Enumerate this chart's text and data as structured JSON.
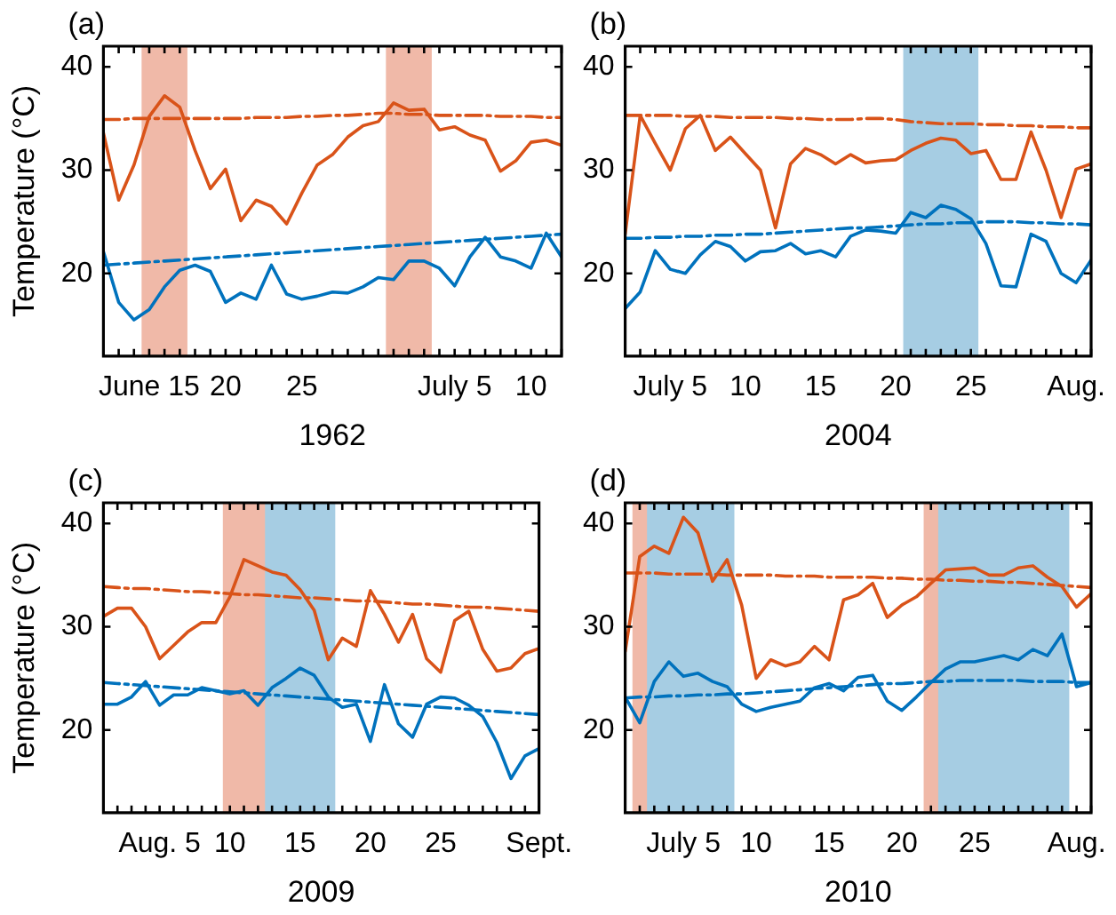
{
  "chart_data": [
    {
      "type": "line",
      "title": "(a)",
      "xlabel": "1962",
      "ylabel": "Temperature (°C)",
      "marker": "none",
      "x": [
        "1962-06-12",
        "1962-06-13",
        "1962-06-14",
        "1962-06-15",
        "1962-06-16",
        "1962-06-17",
        "1962-06-18",
        "1962-06-19",
        "1962-06-20",
        "1962-06-21",
        "1962-06-22",
        "1962-06-23",
        "1962-06-24",
        "1962-06-25",
        "1962-06-26",
        "1962-06-27",
        "1962-06-28",
        "1962-06-29",
        "1962-06-30",
        "1962-07-01",
        "1962-07-02",
        "1962-07-03",
        "1962-07-04",
        "1962-07-05",
        "1962-07-06",
        "1962-07-07",
        "1962-07-08",
        "1962-07-09",
        "1962-07-10",
        "1962-07-11",
        "1962-07-12"
      ],
      "xlim": [
        "1962-06-12",
        "1962-07-12"
      ],
      "xticks": [
        {
          "value": "1962-06-12",
          "label": null
        },
        {
          "value": "1962-06-13",
          "label": null
        },
        {
          "value": "1962-06-14",
          "label": null
        },
        {
          "value": "1962-06-15",
          "label": "June 15"
        },
        {
          "value": "1962-06-16",
          "label": null
        },
        {
          "value": "1962-06-17",
          "label": null
        },
        {
          "value": "1962-06-18",
          "label": null
        },
        {
          "value": "1962-06-19",
          "label": null
        },
        {
          "value": "1962-06-20",
          "label": "20"
        },
        {
          "value": "1962-06-21",
          "label": null
        },
        {
          "value": "1962-06-22",
          "label": null
        },
        {
          "value": "1962-06-23",
          "label": null
        },
        {
          "value": "1962-06-24",
          "label": null
        },
        {
          "value": "1962-06-25",
          "label": "25"
        },
        {
          "value": "1962-06-26",
          "label": null
        },
        {
          "value": "1962-06-27",
          "label": null
        },
        {
          "value": "1962-06-28",
          "label": null
        },
        {
          "value": "1962-06-29",
          "label": null
        },
        {
          "value": "1962-06-30",
          "label": null
        },
        {
          "value": "1962-07-01",
          "label": null
        },
        {
          "value": "1962-07-02",
          "label": null
        },
        {
          "value": "1962-07-03",
          "label": null
        },
        {
          "value": "1962-07-04",
          "label": null
        },
        {
          "value": "1962-07-05",
          "label": "July 5"
        },
        {
          "value": "1962-07-06",
          "label": null
        },
        {
          "value": "1962-07-07",
          "label": null
        },
        {
          "value": "1962-07-08",
          "label": null
        },
        {
          "value": "1962-07-09",
          "label": null
        },
        {
          "value": "1962-07-10",
          "label": "10"
        },
        {
          "value": "1962-07-11",
          "label": null
        },
        {
          "value": "1962-07-12",
          "label": null
        }
      ],
      "ylim": [
        12,
        42
      ],
      "yticks": [
        20,
        30,
        40
      ],
      "bands": [
        {
          "axis": "x",
          "from": "1962-06-14T12:00",
          "to": "1962-06-17T12:00",
          "color": "#f0b9a8"
        },
        {
          "axis": "x",
          "from": "1962-06-30T12:00",
          "to": "1962-07-03T12:00",
          "color": "#f0b9a8"
        }
      ],
      "series": [
        {
          "color": "#d95319",
          "values": [
            33.6,
            27.1,
            30.5,
            35.2,
            37.2,
            36.1,
            31.9,
            28.2,
            30.1,
            25.1,
            27.1,
            26.5,
            24.8,
            27.8,
            30.5,
            31.5,
            33.2,
            34.3,
            34.7,
            36.5,
            35.8,
            35.9,
            33.9,
            34.2,
            33.4,
            32.9,
            29.9,
            30.9,
            32.7,
            32.9,
            32.4
          ]
        },
        {
          "color": "#d95319",
          "line_style": "dashdot",
          "values": [
            34.9,
            34.9,
            35.0,
            35.0,
            35.0,
            35.0,
            35.0,
            35.0,
            35.0,
            35.0,
            35.1,
            35.1,
            35.1,
            35.2,
            35.2,
            35.3,
            35.3,
            35.4,
            35.5,
            35.5,
            35.4,
            35.4,
            35.3,
            35.3,
            35.3,
            35.3,
            35.2,
            35.2,
            35.2,
            35.1,
            35.1
          ]
        },
        {
          "color": "#0072bd",
          "values": [
            22.1,
            17.2,
            15.5,
            16.5,
            18.7,
            20.3,
            20.8,
            20.2,
            17.2,
            18.1,
            17.5,
            20.8,
            18.0,
            17.5,
            17.8,
            18.2,
            18.1,
            18.7,
            19.6,
            19.4,
            21.2,
            21.2,
            20.5,
            18.8,
            21.6,
            23.5,
            21.6,
            21.2,
            20.5,
            23.9,
            21.6
          ]
        },
        {
          "color": "#0072bd",
          "line_style": "dashdot",
          "values": [
            20.8,
            20.9,
            21.0,
            21.1,
            21.2,
            21.3,
            21.4,
            21.5,
            21.6,
            21.7,
            21.8,
            21.9,
            22.0,
            22.1,
            22.2,
            22.3,
            22.4,
            22.5,
            22.6,
            22.7,
            22.8,
            22.9,
            23.0,
            23.1,
            23.2,
            23.3,
            23.4,
            23.5,
            23.6,
            23.7,
            23.8
          ]
        }
      ]
    },
    {
      "type": "line",
      "title": "(b)",
      "xlabel": "2004",
      "marker": "none",
      "x": [
        "2004-07-02",
        "2004-07-03",
        "2004-07-04",
        "2004-07-05",
        "2004-07-06",
        "2004-07-07",
        "2004-07-08",
        "2004-07-09",
        "2004-07-10",
        "2004-07-11",
        "2004-07-12",
        "2004-07-13",
        "2004-07-14",
        "2004-07-15",
        "2004-07-16",
        "2004-07-17",
        "2004-07-18",
        "2004-07-19",
        "2004-07-20",
        "2004-07-21",
        "2004-07-22",
        "2004-07-23",
        "2004-07-24",
        "2004-07-25",
        "2004-07-26",
        "2004-07-27",
        "2004-07-28",
        "2004-07-29",
        "2004-07-30",
        "2004-07-31",
        "2004-08-01",
        "2004-08-02"
      ],
      "xlim": [
        "2004-07-02",
        "2004-08-02"
      ],
      "xticks": [
        {
          "value": "2004-07-02",
          "label": null
        },
        {
          "value": "2004-07-03",
          "label": null
        },
        {
          "value": "2004-07-04",
          "label": null
        },
        {
          "value": "2004-07-05",
          "label": "July 5"
        },
        {
          "value": "2004-07-06",
          "label": null
        },
        {
          "value": "2004-07-07",
          "label": null
        },
        {
          "value": "2004-07-08",
          "label": null
        },
        {
          "value": "2004-07-09",
          "label": null
        },
        {
          "value": "2004-07-10",
          "label": "10"
        },
        {
          "value": "2004-07-11",
          "label": null
        },
        {
          "value": "2004-07-12",
          "label": null
        },
        {
          "value": "2004-07-13",
          "label": null
        },
        {
          "value": "2004-07-14",
          "label": null
        },
        {
          "value": "2004-07-15",
          "label": "15"
        },
        {
          "value": "2004-07-16",
          "label": null
        },
        {
          "value": "2004-07-17",
          "label": null
        },
        {
          "value": "2004-07-18",
          "label": null
        },
        {
          "value": "2004-07-19",
          "label": null
        },
        {
          "value": "2004-07-20",
          "label": "20"
        },
        {
          "value": "2004-07-21",
          "label": null
        },
        {
          "value": "2004-07-22",
          "label": null
        },
        {
          "value": "2004-07-23",
          "label": null
        },
        {
          "value": "2004-07-24",
          "label": null
        },
        {
          "value": "2004-07-25",
          "label": "25"
        },
        {
          "value": "2004-07-26",
          "label": null
        },
        {
          "value": "2004-07-27",
          "label": null
        },
        {
          "value": "2004-07-28",
          "label": null
        },
        {
          "value": "2004-07-29",
          "label": null
        },
        {
          "value": "2004-07-30",
          "label": null
        },
        {
          "value": "2004-07-31",
          "label": null
        },
        {
          "value": "2004-08-01",
          "label": "Aug."
        },
        {
          "value": "2004-08-02",
          "label": null
        }
      ],
      "ylim": [
        12,
        42
      ],
      "yticks": [
        20,
        30,
        40
      ],
      "bands": [
        {
          "axis": "x",
          "from": "2004-07-20T12:00",
          "to": "2004-07-25T12:00",
          "color": "#a6cde3"
        }
      ],
      "series": [
        {
          "color": "#d95319",
          "values": [
            23.8,
            35.3,
            32.6,
            30.0,
            34.0,
            35.3,
            31.9,
            33.2,
            31.6,
            30.0,
            24.4,
            30.6,
            32.1,
            31.5,
            30.6,
            31.5,
            30.7,
            30.9,
            31.0,
            31.9,
            32.6,
            33.1,
            32.9,
            31.6,
            31.9,
            29.1,
            29.1,
            33.7,
            30.0,
            25.4,
            30.1,
            30.6
          ]
        },
        {
          "color": "#d95319",
          "line_style": "dashdot",
          "values": [
            35.3,
            35.3,
            35.3,
            35.3,
            35.2,
            35.2,
            35.2,
            35.1,
            35.1,
            35.1,
            35.1,
            35.0,
            35.0,
            34.9,
            34.9,
            34.9,
            35.0,
            35.0,
            34.9,
            34.7,
            34.6,
            34.5,
            34.5,
            34.5,
            34.4,
            34.4,
            34.3,
            34.3,
            34.2,
            34.2,
            34.1,
            34.1
          ]
        },
        {
          "color": "#0072bd",
          "values": [
            16.6,
            18.2,
            22.2,
            20.4,
            20.0,
            21.8,
            23.1,
            22.6,
            21.2,
            22.1,
            22.2,
            22.9,
            21.9,
            22.2,
            21.6,
            23.6,
            24.2,
            24.1,
            23.9,
            25.9,
            25.4,
            26.6,
            26.2,
            25.3,
            22.9,
            18.8,
            18.7,
            23.8,
            23.1,
            20.0,
            19.1,
            21.3
          ]
        },
        {
          "color": "#0072bd",
          "line_style": "dashdot",
          "values": [
            23.4,
            23.4,
            23.5,
            23.5,
            23.6,
            23.6,
            23.7,
            23.7,
            23.8,
            23.8,
            23.9,
            24.0,
            24.1,
            24.2,
            24.3,
            24.4,
            24.4,
            24.5,
            24.6,
            24.7,
            24.8,
            24.8,
            24.9,
            24.9,
            25.0,
            25.0,
            25.0,
            24.9,
            24.9,
            24.8,
            24.8,
            24.7
          ]
        }
      ]
    },
    {
      "type": "line",
      "title": "(c)",
      "xlabel": "2009",
      "ylabel": "Temperature (°C)",
      "marker": "none",
      "x": [
        "2009-08-01",
        "2009-08-02",
        "2009-08-03",
        "2009-08-04",
        "2009-08-05",
        "2009-08-06",
        "2009-08-07",
        "2009-08-08",
        "2009-08-09",
        "2009-08-10",
        "2009-08-11",
        "2009-08-12",
        "2009-08-13",
        "2009-08-14",
        "2009-08-15",
        "2009-08-16",
        "2009-08-17",
        "2009-08-18",
        "2009-08-19",
        "2009-08-20",
        "2009-08-21",
        "2009-08-22",
        "2009-08-23",
        "2009-08-24",
        "2009-08-25",
        "2009-08-26",
        "2009-08-27",
        "2009-08-28",
        "2009-08-29",
        "2009-08-30",
        "2009-08-31",
        "2009-09-01"
      ],
      "xlim": [
        "2009-08-01",
        "2009-09-01"
      ],
      "xticks": [
        {
          "value": "2009-08-01",
          "label": null
        },
        {
          "value": "2009-08-02",
          "label": null
        },
        {
          "value": "2009-08-03",
          "label": null
        },
        {
          "value": "2009-08-04",
          "label": null
        },
        {
          "value": "2009-08-05",
          "label": "Aug. 5"
        },
        {
          "value": "2009-08-06",
          "label": null
        },
        {
          "value": "2009-08-07",
          "label": null
        },
        {
          "value": "2009-08-08",
          "label": null
        },
        {
          "value": "2009-08-09",
          "label": null
        },
        {
          "value": "2009-08-10",
          "label": "10"
        },
        {
          "value": "2009-08-11",
          "label": null
        },
        {
          "value": "2009-08-12",
          "label": null
        },
        {
          "value": "2009-08-13",
          "label": null
        },
        {
          "value": "2009-08-14",
          "label": null
        },
        {
          "value": "2009-08-15",
          "label": "15"
        },
        {
          "value": "2009-08-16",
          "label": null
        },
        {
          "value": "2009-08-17",
          "label": null
        },
        {
          "value": "2009-08-18",
          "label": null
        },
        {
          "value": "2009-08-19",
          "label": null
        },
        {
          "value": "2009-08-20",
          "label": "20"
        },
        {
          "value": "2009-08-21",
          "label": null
        },
        {
          "value": "2009-08-22",
          "label": null
        },
        {
          "value": "2009-08-23",
          "label": null
        },
        {
          "value": "2009-08-24",
          "label": null
        },
        {
          "value": "2009-08-25",
          "label": "25"
        },
        {
          "value": "2009-08-26",
          "label": null
        },
        {
          "value": "2009-08-27",
          "label": null
        },
        {
          "value": "2009-08-28",
          "label": null
        },
        {
          "value": "2009-08-29",
          "label": null
        },
        {
          "value": "2009-08-30",
          "label": null
        },
        {
          "value": "2009-08-31",
          "label": null
        },
        {
          "value": "2009-09-01",
          "label": "Sept."
        }
      ],
      "ylim": [
        12,
        42
      ],
      "yticks": [
        20,
        30,
        40
      ],
      "bands": [
        {
          "axis": "x",
          "from": "2009-08-09T12:00",
          "to": "2009-08-15T12:00",
          "color": "#f0b9a8"
        },
        {
          "axis": "x",
          "from": "2009-08-12T12:00",
          "to": "2009-08-17T12:00",
          "color": "#a6cde3"
        }
      ],
      "series": [
        {
          "color": "#d95319",
          "values": [
            31.0,
            31.8,
            31.8,
            30.0,
            26.9,
            28.2,
            29.5,
            30.4,
            30.4,
            32.9,
            36.5,
            35.9,
            35.3,
            35.0,
            33.6,
            31.6,
            26.8,
            28.9,
            28.1,
            33.5,
            31.2,
            28.5,
            31.2,
            26.9,
            25.6,
            30.6,
            31.5,
            27.8,
            25.7,
            26.0,
            27.4,
            27.9
          ]
        },
        {
          "color": "#d95319",
          "line_style": "dashdot",
          "values": [
            33.9,
            33.8,
            33.7,
            33.7,
            33.6,
            33.5,
            33.4,
            33.4,
            33.3,
            33.2,
            33.1,
            33.1,
            33.0,
            32.9,
            32.8,
            32.8,
            32.7,
            32.6,
            32.5,
            32.5,
            32.4,
            32.3,
            32.2,
            32.2,
            32.1,
            32.0,
            31.9,
            31.9,
            31.8,
            31.7,
            31.6,
            31.5
          ]
        },
        {
          "color": "#0072bd",
          "values": [
            22.5,
            22.5,
            23.2,
            24.7,
            22.4,
            23.4,
            23.4,
            24.1,
            23.8,
            23.5,
            23.8,
            22.4,
            24.1,
            25.0,
            26.0,
            25.3,
            23.2,
            22.2,
            22.5,
            18.9,
            24.4,
            20.6,
            19.3,
            22.5,
            23.2,
            23.1,
            22.4,
            21.3,
            18.8,
            15.3,
            17.5,
            18.2
          ]
        },
        {
          "color": "#0072bd",
          "line_style": "dashdot",
          "values": [
            24.6,
            24.5,
            24.4,
            24.3,
            24.2,
            24.1,
            24.0,
            23.9,
            23.8,
            23.7,
            23.6,
            23.5,
            23.4,
            23.3,
            23.2,
            23.1,
            23.0,
            22.9,
            22.8,
            22.7,
            22.6,
            22.5,
            22.4,
            22.3,
            22.2,
            22.1,
            22.0,
            21.9,
            21.8,
            21.7,
            21.6,
            21.5
          ]
        }
      ]
    },
    {
      "type": "line",
      "title": "(d)",
      "xlabel": "2010",
      "marker": "none",
      "x": [
        "2010-07-01",
        "2010-07-02",
        "2010-07-03",
        "2010-07-04",
        "2010-07-05",
        "2010-07-06",
        "2010-07-07",
        "2010-07-08",
        "2010-07-09",
        "2010-07-10",
        "2010-07-11",
        "2010-07-12",
        "2010-07-13",
        "2010-07-14",
        "2010-07-15",
        "2010-07-16",
        "2010-07-17",
        "2010-07-18",
        "2010-07-19",
        "2010-07-20",
        "2010-07-21",
        "2010-07-22",
        "2010-07-23",
        "2010-07-24",
        "2010-07-25",
        "2010-07-26",
        "2010-07-27",
        "2010-07-28",
        "2010-07-29",
        "2010-07-30",
        "2010-07-31",
        "2010-08-01",
        "2010-08-02"
      ],
      "xlim": [
        "2010-07-01",
        "2010-08-02"
      ],
      "xticks": [
        {
          "value": "2010-07-01",
          "label": null
        },
        {
          "value": "2010-07-02",
          "label": null
        },
        {
          "value": "2010-07-03",
          "label": null
        },
        {
          "value": "2010-07-04",
          "label": null
        },
        {
          "value": "2010-07-05",
          "label": "July 5"
        },
        {
          "value": "2010-07-06",
          "label": null
        },
        {
          "value": "2010-07-07",
          "label": null
        },
        {
          "value": "2010-07-08",
          "label": null
        },
        {
          "value": "2010-07-09",
          "label": null
        },
        {
          "value": "2010-07-10",
          "label": "10"
        },
        {
          "value": "2010-07-11",
          "label": null
        },
        {
          "value": "2010-07-12",
          "label": null
        },
        {
          "value": "2010-07-13",
          "label": null
        },
        {
          "value": "2010-07-14",
          "label": null
        },
        {
          "value": "2010-07-15",
          "label": "15"
        },
        {
          "value": "2010-07-16",
          "label": null
        },
        {
          "value": "2010-07-17",
          "label": null
        },
        {
          "value": "2010-07-18",
          "label": null
        },
        {
          "value": "2010-07-19",
          "label": null
        },
        {
          "value": "2010-07-20",
          "label": "20"
        },
        {
          "value": "2010-07-21",
          "label": null
        },
        {
          "value": "2010-07-22",
          "label": null
        },
        {
          "value": "2010-07-23",
          "label": null
        },
        {
          "value": "2010-07-24",
          "label": null
        },
        {
          "value": "2010-07-25",
          "label": "25"
        },
        {
          "value": "2010-07-26",
          "label": null
        },
        {
          "value": "2010-07-27",
          "label": null
        },
        {
          "value": "2010-07-28",
          "label": null
        },
        {
          "value": "2010-07-29",
          "label": null
        },
        {
          "value": "2010-07-30",
          "label": null
        },
        {
          "value": "2010-07-31",
          "label": null
        },
        {
          "value": "2010-08-01",
          "label": "Aug."
        },
        {
          "value": "2010-08-02",
          "label": null
        }
      ],
      "ylim": [
        12,
        42
      ],
      "yticks": [
        20,
        30,
        40
      ],
      "bands": [
        {
          "axis": "x",
          "from": "2010-07-01T12:00",
          "to": "2010-07-06T12:00",
          "color": "#f0b9a8"
        },
        {
          "axis": "x",
          "from": "2010-07-02T12:00",
          "to": "2010-07-08T12:00",
          "color": "#a6cde3"
        },
        {
          "axis": "x",
          "from": "2010-07-21T12:00",
          "to": "2010-07-30T12:00",
          "color": "#f0b9a8"
        },
        {
          "axis": "x",
          "from": "2010-07-22T12:00",
          "to": "2010-07-31T12:00",
          "color": "#a6cde3"
        }
      ],
      "series": [
        {
          "color": "#d95319",
          "values": [
            27.6,
            36.8,
            37.8,
            37.1,
            40.6,
            39.1,
            34.4,
            36.5,
            32.1,
            25.0,
            26.8,
            26.2,
            26.6,
            28.1,
            26.8,
            32.6,
            33.1,
            34.2,
            30.9,
            32.1,
            32.9,
            34.2,
            35.5,
            35.6,
            35.7,
            35.0,
            35.0,
            35.7,
            35.9,
            34.8,
            33.9,
            31.9,
            33.2
          ]
        },
        {
          "color": "#d95319",
          "line_style": "dashdot",
          "values": [
            35.2,
            35.2,
            35.2,
            35.1,
            35.1,
            35.1,
            35.1,
            35.0,
            35.0,
            35.0,
            35.0,
            34.9,
            34.9,
            34.9,
            34.8,
            34.8,
            34.8,
            34.8,
            34.7,
            34.7,
            34.6,
            34.6,
            34.5,
            34.5,
            34.4,
            34.4,
            34.3,
            34.3,
            34.2,
            34.1,
            34.0,
            33.9,
            33.8
          ]
        },
        {
          "color": "#0072bd",
          "values": [
            23.2,
            20.7,
            24.7,
            26.6,
            25.2,
            25.5,
            24.7,
            24.2,
            22.5,
            21.8,
            22.2,
            22.5,
            22.8,
            24.1,
            24.5,
            23.8,
            25.1,
            25.3,
            22.8,
            21.9,
            23.2,
            24.6,
            25.9,
            26.6,
            26.6,
            26.9,
            27.2,
            26.8,
            27.8,
            27.2,
            29.3,
            24.2,
            24.6
          ]
        },
        {
          "color": "#0072bd",
          "line_style": "dashdot",
          "values": [
            23.1,
            23.2,
            23.2,
            23.3,
            23.3,
            23.4,
            23.4,
            23.5,
            23.5,
            23.6,
            23.7,
            23.8,
            23.9,
            24.0,
            24.1,
            24.2,
            24.3,
            24.4,
            24.5,
            24.5,
            24.6,
            24.7,
            24.7,
            24.8,
            24.8,
            24.8,
            24.8,
            24.8,
            24.7,
            24.7,
            24.7,
            24.6,
            24.6
          ]
        }
      ]
    }
  ]
}
